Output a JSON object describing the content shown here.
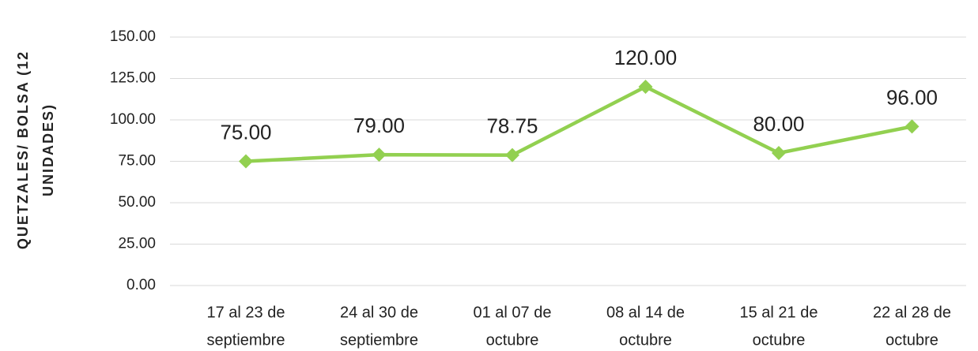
{
  "chart_data": {
    "type": "line",
    "ylabel": [
      "QUETZALES/ BOLSA (12",
      "UNIDADES)"
    ],
    "categories": [
      [
        "17 al 23 de",
        "septiembre"
      ],
      [
        "24 al 30 de",
        "septiembre"
      ],
      [
        "01 al 07 de",
        "octubre"
      ],
      [
        "08 al 14 de",
        "octubre"
      ],
      [
        "15 al 21 de",
        "octubre"
      ],
      [
        "22 al 28 de",
        "octubre"
      ]
    ],
    "values": [
      75,
      79,
      78.75,
      120,
      80,
      96
    ],
    "value_labels": [
      "75.00",
      "79.00",
      "78.75",
      "120.00",
      "80.00",
      "96.00"
    ],
    "color": "#92d050",
    "ylim": [
      0,
      150
    ],
    "yticks": [
      {
        "value": 0,
        "label": "0.00"
      },
      {
        "value": 25,
        "label": "25.00"
      },
      {
        "value": 50,
        "label": "50.00"
      },
      {
        "value": 75,
        "label": "75.00"
      },
      {
        "value": 100,
        "label": "100.00"
      },
      {
        "value": 125,
        "label": "125.00"
      },
      {
        "value": 150,
        "label": "150.00"
      }
    ],
    "grid": true
  }
}
